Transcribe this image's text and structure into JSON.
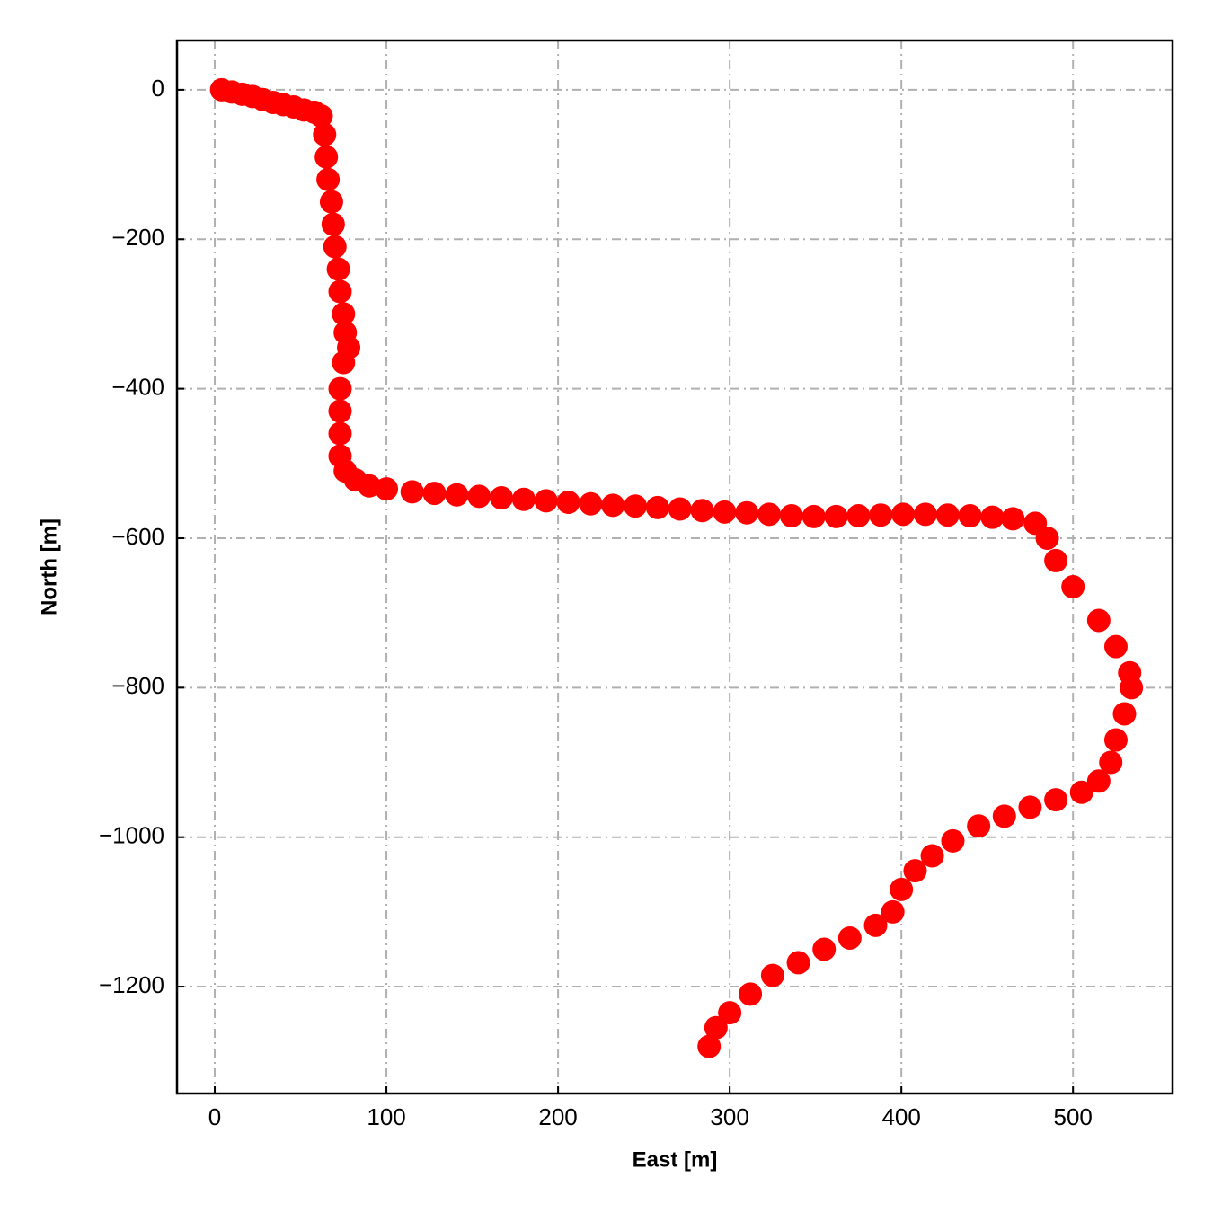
{
  "chart_data": {
    "type": "scatter",
    "x_label": "East [m]",
    "y_label": "North [m]",
    "color": "#ff0000",
    "grid": true,
    "xlim": [
      -22,
      558
    ],
    "ylim": [
      -1343,
      66
    ],
    "xticks": [
      0,
      100,
      200,
      300,
      400,
      500
    ],
    "yticks": [
      {
        "value": -1200,
        "label": "−1200"
      },
      {
        "value": -1000,
        "label": "−1000"
      },
      {
        "value": -800,
        "label": "−800"
      },
      {
        "value": -600,
        "label": "−600"
      },
      {
        "value": -400,
        "label": "−400"
      },
      {
        "value": -200,
        "label": "−200"
      },
      0
    ],
    "x": [
      4,
      10,
      16,
      22,
      28,
      34,
      40,
      46,
      52,
      58,
      62,
      64,
      65,
      66,
      68,
      69,
      70,
      72,
      73,
      75,
      76,
      78,
      75,
      73,
      73,
      73,
      73,
      76,
      82,
      90,
      100,
      115,
      128,
      141,
      154,
      167,
      180,
      193,
      206,
      219,
      232,
      245,
      258,
      271,
      284,
      297,
      310,
      323,
      336,
      349,
      362,
      375,
      388,
      401,
      414,
      427,
      440,
      453,
      465,
      478,
      485,
      490,
      500,
      515,
      525,
      533,
      534,
      530,
      525,
      522,
      515,
      505,
      490,
      475,
      460,
      445,
      430,
      418,
      408,
      400,
      395,
      385,
      370,
      355,
      340,
      325,
      312,
      300,
      292,
      288
    ],
    "y": [
      0,
      -3,
      -6,
      -9,
      -13,
      -17,
      -20,
      -23,
      -27,
      -30,
      -35,
      -60,
      -90,
      -120,
      -150,
      -180,
      -210,
      -240,
      -270,
      -300,
      -325,
      -345,
      -365,
      -400,
      -430,
      -460,
      -490,
      -510,
      -522,
      -530,
      -534,
      -538,
      -540,
      -542,
      -544,
      -546,
      -548,
      -550,
      -552,
      -554,
      -556,
      -557,
      -559,
      -561,
      -563,
      -565,
      -566,
      -568,
      -570,
      -571,
      -571,
      -570,
      -569,
      -568,
      -568,
      -569,
      -570,
      -572,
      -574,
      -580,
      -600,
      -630,
      -665,
      -710,
      -745,
      -780,
      -800,
      -835,
      -870,
      -900,
      -925,
      -940,
      -950,
      -960,
      -972,
      -985,
      -1005,
      -1025,
      -1045,
      -1070,
      -1100,
      -1118,
      -1135,
      -1150,
      -1168,
      -1185,
      -1210,
      -1235,
      -1255,
      -1280
    ]
  }
}
